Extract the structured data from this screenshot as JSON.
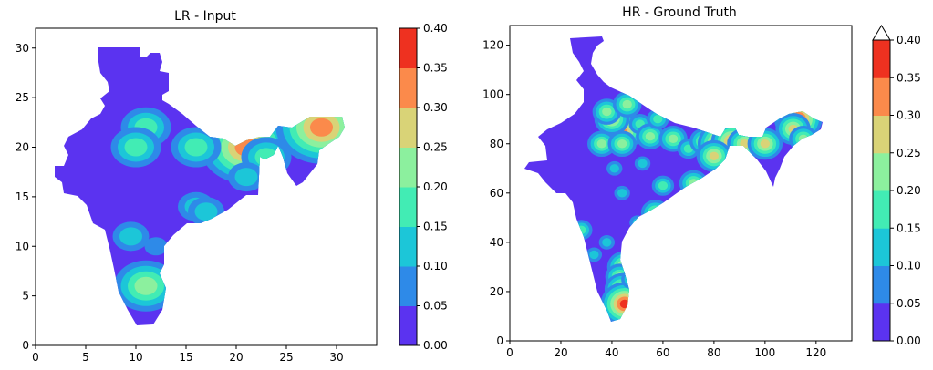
{
  "chart_data": [
    {
      "type": "heatmap",
      "title": "LR - Input",
      "xlim": [
        0,
        34
      ],
      "ylim": [
        0,
        32
      ],
      "xticks": [
        0,
        5,
        10,
        15,
        20,
        25,
        30
      ],
      "yticks": [
        0,
        5,
        10,
        15,
        20,
        25,
        30
      ],
      "hotspots": [
        {
          "x": 21,
          "y": 20,
          "value": 0.35
        },
        {
          "x": 28.5,
          "y": 22,
          "value": 0.32
        },
        {
          "x": 11,
          "y": 22,
          "value": 0.18
        },
        {
          "x": 10,
          "y": 20,
          "value": 0.17
        },
        {
          "x": 16,
          "y": 20,
          "value": 0.19
        },
        {
          "x": 11,
          "y": 6,
          "value": 0.2
        },
        {
          "x": 23,
          "y": 19,
          "value": 0.17
        },
        {
          "x": 16,
          "y": 14,
          "value": 0.12
        },
        {
          "x": 9.5,
          "y": 11,
          "value": 0.1
        },
        {
          "x": 12,
          "y": 10,
          "value": 0.09
        },
        {
          "x": 21,
          "y": 17,
          "value": 0.12
        },
        {
          "x": 17,
          "y": 13.5,
          "value": 0.11
        }
      ],
      "colorbar": {
        "ticks": [
          "0.00",
          "0.05",
          "0.10",
          "0.15",
          "0.20",
          "0.25",
          "0.30",
          "0.35",
          "0.40"
        ],
        "colors": [
          "#5b33f0",
          "#2e8ae8",
          "#1cc6d8",
          "#42ecb4",
          "#8cf09e",
          "#d9d377",
          "#fb8a4b",
          "#ee3120"
        ],
        "extend_max": false
      }
    },
    {
      "type": "heatmap",
      "title": "HR - Ground Truth",
      "xlim": [
        0,
        134
      ],
      "ylim": [
        0,
        128
      ],
      "xticks": [
        0,
        20,
        40,
        60,
        80,
        100,
        120
      ],
      "yticks": [
        0,
        20,
        40,
        60,
        80,
        100,
        120
      ],
      "hotspots": [
        {
          "x": 44,
          "y": 85,
          "value": 0.32
        },
        {
          "x": 40,
          "y": 90,
          "value": 0.3
        },
        {
          "x": 38,
          "y": 93,
          "value": 0.22
        },
        {
          "x": 46,
          "y": 96,
          "value": 0.2
        },
        {
          "x": 51,
          "y": 88,
          "value": 0.18
        },
        {
          "x": 36,
          "y": 80,
          "value": 0.22
        },
        {
          "x": 44,
          "y": 80,
          "value": 0.2
        },
        {
          "x": 55,
          "y": 83,
          "value": 0.22
        },
        {
          "x": 64,
          "y": 82,
          "value": 0.2
        },
        {
          "x": 70,
          "y": 78,
          "value": 0.19
        },
        {
          "x": 76,
          "y": 81,
          "value": 0.22
        },
        {
          "x": 83,
          "y": 80,
          "value": 0.36
        },
        {
          "x": 87,
          "y": 81,
          "value": 0.32
        },
        {
          "x": 92,
          "y": 80,
          "value": 0.28
        },
        {
          "x": 100,
          "y": 80,
          "value": 0.26
        },
        {
          "x": 113,
          "y": 90,
          "value": 0.38
        },
        {
          "x": 111,
          "y": 86,
          "value": 0.3
        },
        {
          "x": 115,
          "y": 82,
          "value": 0.22
        },
        {
          "x": 80,
          "y": 75,
          "value": 0.26
        },
        {
          "x": 72,
          "y": 64,
          "value": 0.2
        },
        {
          "x": 60,
          "y": 63,
          "value": 0.18
        },
        {
          "x": 57,
          "y": 52,
          "value": 0.2
        },
        {
          "x": 63,
          "y": 53,
          "value": 0.15
        },
        {
          "x": 50,
          "y": 48,
          "value": 0.14
        },
        {
          "x": 44,
          "y": 60,
          "value": 0.12
        },
        {
          "x": 45,
          "y": 30,
          "value": 0.3
        },
        {
          "x": 43,
          "y": 26,
          "value": 0.22
        },
        {
          "x": 44,
          "y": 21,
          "value": 0.26
        },
        {
          "x": 45,
          "y": 15,
          "value": 0.38
        },
        {
          "x": 48,
          "y": 25,
          "value": 0.18
        },
        {
          "x": 28,
          "y": 45,
          "value": 0.16
        },
        {
          "x": 33,
          "y": 35,
          "value": 0.14
        },
        {
          "x": 38,
          "y": 40,
          "value": 0.12
        },
        {
          "x": 41,
          "y": 70,
          "value": 0.12
        },
        {
          "x": 58,
          "y": 90,
          "value": 0.18
        },
        {
          "x": 52,
          "y": 72,
          "value": 0.12
        }
      ],
      "colorbar": {
        "ticks": [
          "0.00",
          "0.05",
          "0.10",
          "0.15",
          "0.20",
          "0.25",
          "0.30",
          "0.35",
          "0.40"
        ],
        "colors": [
          "#5b33f0",
          "#2e8ae8",
          "#1cc6d8",
          "#42ecb4",
          "#8cf09e",
          "#d9d377",
          "#fb8a4b",
          "#ee3120"
        ],
        "extend_max": true,
        "extend_color": "#c7170f"
      }
    }
  ]
}
